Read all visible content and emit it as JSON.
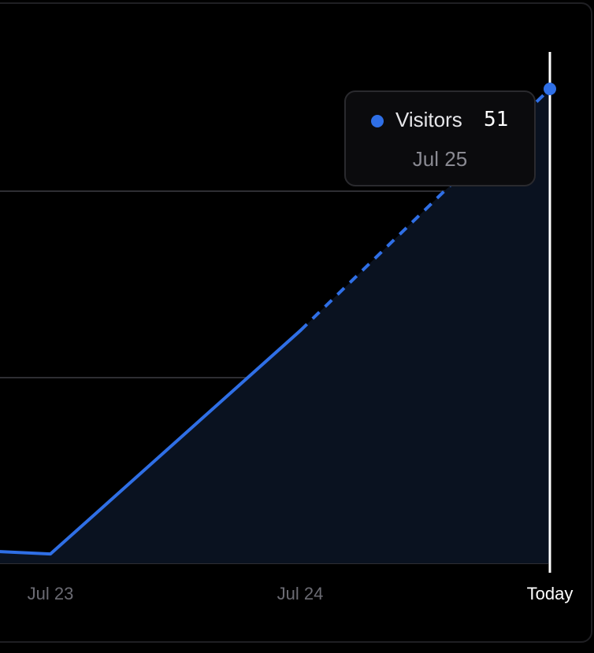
{
  "colors": {
    "background": "#000000",
    "series": "#2f6fe6",
    "area": "#0a1220",
    "grid": "#2e2e33",
    "cursor": "#ffffff",
    "tick": "#6b6b73"
  },
  "chart_data": {
    "type": "area",
    "categories": [
      "Jul 23",
      "Jul 24",
      "Today"
    ],
    "series": [
      {
        "name": "Visitors",
        "values": [
          1,
          25,
          51
        ],
        "projected_segment": "Jul 24 to Today (dashed)"
      }
    ],
    "x_tick_labels": [
      "Jul 23",
      "Jul 24",
      "Today"
    ],
    "active_x_label": "Today",
    "ylim": [
      0,
      51
    ],
    "gridlines": 3,
    "grid": true
  },
  "tooltip": {
    "series_name": "Visitors",
    "value": "51",
    "date": "Jul 25"
  }
}
